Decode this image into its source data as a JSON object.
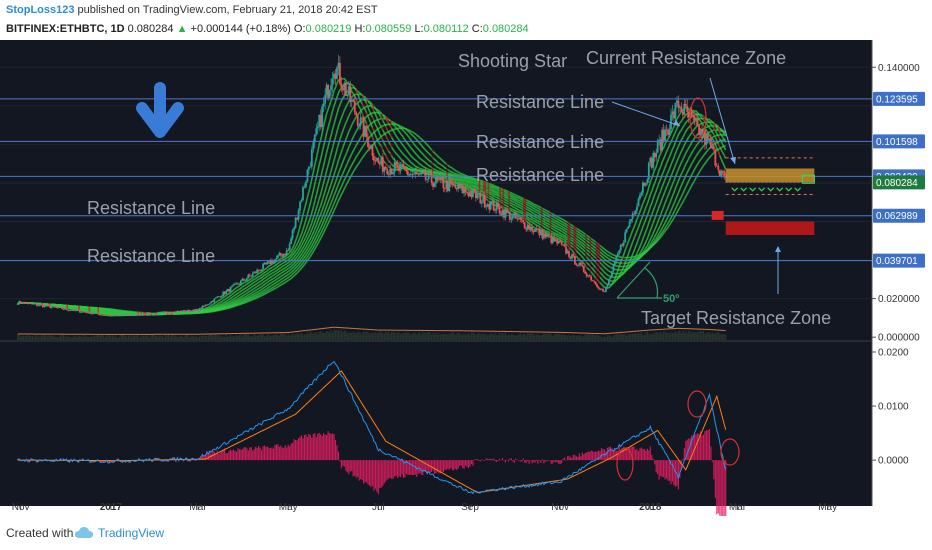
{
  "header": {
    "author": "StopLoss123",
    "published": "published on TradingView.com, February 21, 2018 20:42 EST",
    "symbol": "BITFINEX:ETHBTC, 1D",
    "last": "0.080284",
    "change": "+0.000144 (+0.18%)",
    "open_label": "O:",
    "open": "0.080219",
    "high_label": "H:",
    "high": "0.080559",
    "low_label": "L:",
    "low": "0.080112",
    "close_label": "C:",
    "close": "0.080284"
  },
  "colors": {
    "background": "#131722",
    "bull": "#26a69a",
    "bear": "#ef5350",
    "ribbon_green": "#2ecc40",
    "ribbon_red": "#c0392b",
    "resistance_line": "#4a7bd0",
    "macd_line": "#2196f3",
    "signal_line": "#ff7f0e",
    "histogram": "#e91e63",
    "annotation_text": "#9aa0aa"
  },
  "annotations": {
    "shooting_star": "Shooting Star",
    "current_zone": "Current Resistance Zone",
    "target_zone": "Target Resistance Zone",
    "resistance_line": "Resistance Line",
    "angle": "50º"
  },
  "price_tags": [
    "0.123595",
    "0.101598",
    "0.083429",
    "0.080284",
    "0.062989",
    "0.039701"
  ],
  "chart_data": {
    "type": "line",
    "title": "BITFINEX:ETHBTC, 1D",
    "x": [
      "2016-11",
      "2017-01",
      "2017-03",
      "2017-05",
      "2017-06",
      "2017-07",
      "2017-09",
      "2017-11",
      "2017-12",
      "2018-01",
      "2018-01-20",
      "2018-02-10",
      "2018-02-21"
    ],
    "series": [
      {
        "values": [
          0.018,
          0.011,
          0.014,
          0.045,
          0.142,
          0.09,
          0.075,
          0.048,
          0.023,
          0.09,
          0.121,
          0.1,
          0.080284
        ]
      }
    ],
    "ylim": [
      0.0,
      0.15
    ],
    "y_ticks": [
      "0.140000",
      "0.020000",
      "0.000000"
    ],
    "resistance_levels": [
      0.123595,
      0.101598,
      0.083429,
      0.062989,
      0.039701
    ],
    "x_tick_labels": [
      "Nov",
      "2017",
      "Mar",
      "May",
      "Jul",
      "Sep",
      "Nov",
      "2018",
      "Mar",
      "May"
    ],
    "macd_panel": {
      "ylim": [
        -0.007,
        0.02
      ],
      "y_ticks": [
        "0.0200",
        "0.0100",
        "0.0000"
      ],
      "macd_values": [
        0.0,
        -0.0002,
        0.0003,
        0.0095,
        0.0185,
        0.002,
        -0.006,
        -0.004,
        0.001,
        0.006,
        -0.003,
        0.012,
        -0.002
      ],
      "signal_values": [
        0.0,
        -0.0001,
        0.0002,
        0.0085,
        0.0165,
        0.0035,
        -0.006,
        -0.0035,
        0.0005,
        0.0055,
        -0.0018,
        0.0118,
        0.0005
      ]
    }
  },
  "footer": {
    "created_with": "Created with",
    "brand": "TradingView"
  }
}
